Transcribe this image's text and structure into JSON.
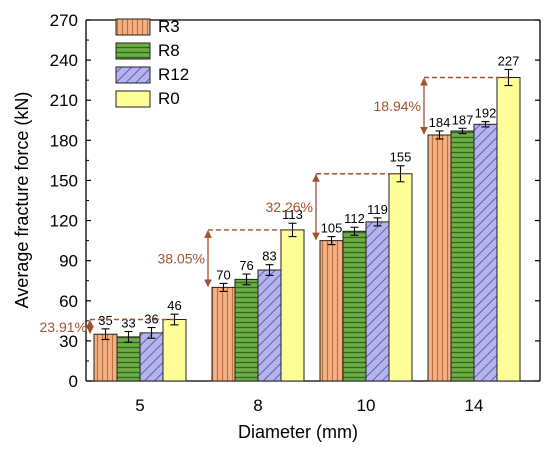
{
  "chart_data": {
    "type": "bar",
    "xlabel": "Diameter (mm)",
    "ylabel": "Average fracture force (kN)",
    "ylim": [
      0,
      270
    ],
    "yticks": [
      0,
      30,
      60,
      90,
      120,
      150,
      180,
      210,
      240,
      270
    ],
    "categories": [
      "5",
      "8",
      "10",
      "14"
    ],
    "legend_position": "top-left",
    "grid": false,
    "series": [
      {
        "name": "R3",
        "color": "#f4b183",
        "pattern": "vertical-lines",
        "values": [
          35,
          70,
          105,
          184
        ],
        "errors": [
          4,
          3,
          3,
          3
        ]
      },
      {
        "name": "R8",
        "color": "#70ad47",
        "pattern": "horizontal-lines",
        "values": [
          33,
          76,
          112,
          187
        ],
        "errors": [
          4,
          4,
          3,
          2
        ]
      },
      {
        "name": "R12",
        "color": "#9999dd",
        "pattern": "diagonal-lines",
        "values": [
          36,
          83,
          119,
          192
        ],
        "errors": [
          4,
          4,
          3,
          2
        ]
      },
      {
        "name": "R0",
        "color": "#ffff99",
        "pattern": "solid",
        "values": [
          46,
          113,
          155,
          227
        ],
        "errors": [
          4,
          5,
          6,
          6
        ]
      }
    ],
    "annotations": [
      {
        "category": "5",
        "text": "23.91%"
      },
      {
        "category": "8",
        "text": "38.05%"
      },
      {
        "category": "10",
        "text": "32.26%"
      },
      {
        "category": "14",
        "text": "18.94%"
      }
    ],
    "annotation_color": "#a0522d"
  }
}
